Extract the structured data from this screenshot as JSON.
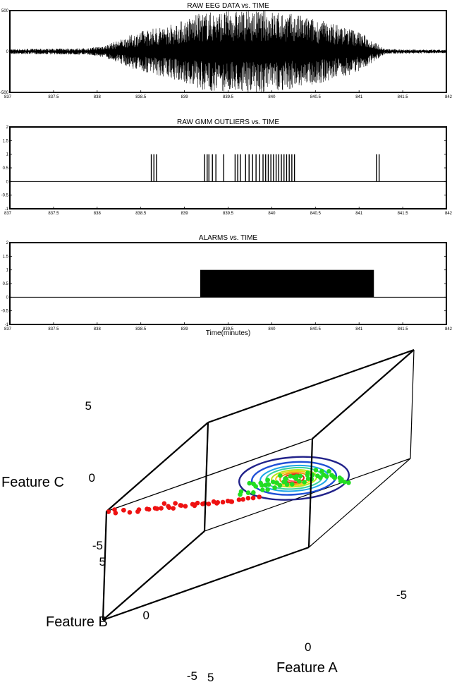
{
  "chart_data": [
    {
      "type": "line",
      "title": "RAW EEG DATA vs. TIME",
      "xlim": [
        837,
        842
      ],
      "ylim": [
        -500,
        500
      ],
      "x_ticks": [
        "837",
        "837.5",
        "838",
        "838.5",
        "839",
        "839.5",
        "840",
        "840.5",
        "841",
        "841.5",
        "842"
      ],
      "y_ticks": [
        "500",
        "0",
        "-500"
      ],
      "series": [
        {
          "amplitude_envelope": [
            {
              "x": 837.0,
              "y": 30
            },
            {
              "x": 837.9,
              "y": 40
            },
            {
              "x": 838.1,
              "y": 80
            },
            {
              "x": 838.2,
              "y": 120
            },
            {
              "x": 838.5,
              "y": 250
            },
            {
              "x": 838.9,
              "y": 350
            },
            {
              "x": 839.2,
              "y": 480
            },
            {
              "x": 839.6,
              "y": 500
            },
            {
              "x": 840.0,
              "y": 500
            },
            {
              "x": 840.3,
              "y": 450
            },
            {
              "x": 840.7,
              "y": 350
            },
            {
              "x": 841.0,
              "y": 250
            },
            {
              "x": 841.2,
              "y": 100
            },
            {
              "x": 841.3,
              "y": 30
            },
            {
              "x": 842.0,
              "y": 20
            }
          ]
        }
      ]
    },
    {
      "type": "bar",
      "title": "RAW GMM OUTLIERS vs. TIME",
      "xlim": [
        837,
        842
      ],
      "ylim": [
        -1,
        2
      ],
      "x_ticks": [
        "837",
        "837.5",
        "838",
        "838.5",
        "839",
        "839.5",
        "840",
        "840.5",
        "841",
        "841.5",
        "842"
      ],
      "y_ticks": [
        "2",
        "1.5",
        "1",
        "0.5",
        "0",
        "-0.5",
        "-1"
      ],
      "outlier_times": [
        838.62,
        838.65,
        838.68,
        839.23,
        839.26,
        839.28,
        839.32,
        839.36,
        839.45,
        839.58,
        839.61,
        839.64,
        839.7,
        839.74,
        839.78,
        839.82,
        839.86,
        839.9,
        839.93,
        839.96,
        839.99,
        840.02,
        840.05,
        840.08,
        840.11,
        840.14,
        840.17,
        840.2,
        840.23,
        840.26,
        841.2,
        841.23
      ],
      "value": 1
    },
    {
      "type": "area",
      "title": "ALARMS vs. TIME",
      "xlabel": "Time(minutes)",
      "xlim": [
        837,
        842
      ],
      "ylim": [
        -1,
        2
      ],
      "x_ticks": [
        "837",
        "837.5",
        "838",
        "838.5",
        "839",
        "839.5",
        "840",
        "840.5",
        "841",
        "841.5",
        "842"
      ],
      "y_ticks": [
        "2",
        "1.5",
        "1",
        "0.5",
        "0",
        "-0.5",
        "-1"
      ],
      "alarm_intervals": [
        {
          "start": 839.18,
          "end": 841.17,
          "value": 1
        }
      ]
    },
    {
      "type": "scatter",
      "axes_3d": true,
      "labels": {
        "a": "Feature A",
        "b": "Feature B",
        "c": "Feature C"
      },
      "a_ticks": [
        "-5",
        "0",
        "5"
      ],
      "b_ticks": [
        "5",
        "0",
        "-5"
      ],
      "c_ticks": [
        "5",
        "0",
        "-5"
      ],
      "series": [
        {
          "color": "#ee1111",
          "points_abc": [
            [
              5.0,
              4.8,
              4.8
            ],
            [
              4.8,
              4.6,
              4.7
            ],
            [
              4.6,
              4.9,
              4.5
            ],
            [
              4.3,
              4.7,
              4.4
            ],
            [
              4.5,
              4.3,
              4.2
            ],
            [
              4.1,
              4.5,
              3.9
            ],
            [
              3.7,
              4.4,
              3.8
            ],
            [
              3.9,
              4.1,
              3.5
            ],
            [
              3.4,
              4.2,
              3.5
            ],
            [
              3.5,
              3.8,
              3.2
            ],
            [
              3.1,
              4.0,
              3.2
            ],
            [
              3.2,
              3.6,
              2.9
            ],
            [
              2.9,
              3.8,
              2.9
            ],
            [
              2.7,
              3.5,
              2.7
            ],
            [
              2.8,
              3.2,
              2.4
            ],
            [
              2.5,
              3.4,
              2.3
            ],
            [
              2.3,
              3.1,
              2.2
            ],
            [
              2.4,
              2.8,
              2.0
            ],
            [
              2.1,
              3.0,
              1.9
            ],
            [
              1.9,
              2.7,
              1.7
            ],
            [
              1.7,
              2.9,
              1.6
            ],
            [
              2.0,
              2.3,
              1.4
            ],
            [
              1.5,
              2.5,
              1.3
            ],
            [
              1.6,
              2.1,
              1.1
            ],
            [
              1.3,
              2.3,
              1.0
            ],
            [
              1.2,
              2.0,
              0.9
            ],
            [
              1.0,
              2.1,
              0.7
            ],
            [
              1.1,
              1.8,
              0.6
            ],
            [
              0.8,
              1.9,
              0.5
            ],
            [
              0.7,
              1.6,
              0.3
            ],
            [
              0.5,
              1.7,
              0.2
            ],
            [
              0.6,
              1.4,
              0.0
            ],
            [
              0.3,
              1.3,
              -0.1
            ],
            [
              0.2,
              1.1,
              -0.3
            ],
            [
              0.0,
              1.0,
              -0.4
            ],
            [
              -0.2,
              0.9,
              -0.6
            ],
            [
              -0.4,
              0.7,
              -0.8
            ],
            [
              2.6,
              3.0,
              2.5
            ],
            [
              3.0,
              3.3,
              3.0
            ],
            [
              1.8,
              2.4,
              1.5
            ]
          ]
        },
        {
          "color": "#22dd22",
          "points_abc": [
            [
              0.4,
              1.0,
              0.2
            ],
            [
              0.1,
              0.8,
              0.0
            ],
            [
              -0.2,
              0.9,
              -0.1
            ],
            [
              -0.5,
              0.6,
              -0.3
            ],
            [
              -0.8,
              0.7,
              -0.4
            ],
            [
              -1.0,
              0.4,
              -0.6
            ],
            [
              -1.3,
              0.5,
              -0.5
            ],
            [
              -1.5,
              0.2,
              -0.8
            ],
            [
              -1.8,
              0.3,
              -0.9
            ],
            [
              -2.0,
              0.0,
              -1.0
            ],
            [
              -2.3,
              0.1,
              -1.2
            ],
            [
              -2.5,
              -0.2,
              -1.3
            ],
            [
              -0.6,
              0.2,
              -0.2
            ],
            [
              -0.9,
              0.0,
              -0.4
            ],
            [
              -1.2,
              -0.2,
              -0.6
            ],
            [
              -1.4,
              0.1,
              -0.3
            ],
            [
              -1.7,
              -0.1,
              -0.5
            ],
            [
              -1.9,
              -0.3,
              -0.7
            ],
            [
              -2.2,
              -0.4,
              -0.9
            ],
            [
              -2.4,
              -0.5,
              -1.1
            ],
            [
              -2.6,
              -0.6,
              -1.4
            ],
            [
              -2.8,
              -0.8,
              -1.6
            ],
            [
              -3.0,
              -0.7,
              -1.8
            ],
            [
              -3.1,
              -1.0,
              -2.0
            ],
            [
              -3.3,
              -0.9,
              -2.3
            ],
            [
              -3.4,
              -1.2,
              -2.6
            ],
            [
              -3.5,
              -1.1,
              -2.9
            ],
            [
              -3.6,
              -1.3,
              -3.2
            ],
            [
              -0.3,
              0.4,
              0.3
            ],
            [
              0.0,
              0.5,
              0.5
            ],
            [
              -0.4,
              -0.1,
              0.1
            ],
            [
              -1.1,
              0.8,
              0.2
            ],
            [
              -1.6,
              0.6,
              0.0
            ],
            [
              -2.1,
              0.5,
              -0.2
            ],
            [
              -0.7,
              1.1,
              0.4
            ],
            [
              0.3,
              0.3,
              0.6
            ],
            [
              -2.7,
              -0.2,
              -0.6
            ],
            [
              -2.9,
              -0.4,
              -1.0
            ],
            [
              -3.2,
              -0.5,
              -1.3
            ],
            [
              -1.0,
              -0.5,
              -0.8
            ],
            [
              -1.5,
              -0.7,
              -1.0
            ],
            [
              -2.0,
              -0.9,
              -1.5
            ],
            [
              -2.5,
              -1.1,
              -1.9
            ],
            [
              -3.0,
              -1.4,
              -2.4
            ],
            [
              -3.7,
              -1.5,
              -3.5
            ],
            [
              -0.2,
              -0.3,
              -0.4
            ],
            [
              0.5,
              0.7,
              0.3
            ],
            [
              -1.2,
              0.3,
              0.3
            ],
            [
              -1.9,
              0.7,
              0.1
            ],
            [
              -2.6,
              0.4,
              -0.3
            ],
            [
              -0.5,
              1.3,
              0.6
            ],
            [
              -3.3,
              -1.6,
              -3.0
            ]
          ]
        }
      ],
      "contours": {
        "center_abc": [
          -1.6,
          0.0,
          -0.4
        ],
        "colors": [
          "#22228a",
          "#1f4fd6",
          "#1ea6e8",
          "#39d39a",
          "#b9e61a",
          "#f2cf14",
          "#f28a12",
          "#e42412",
          "#ff5555"
        ]
      }
    }
  ]
}
